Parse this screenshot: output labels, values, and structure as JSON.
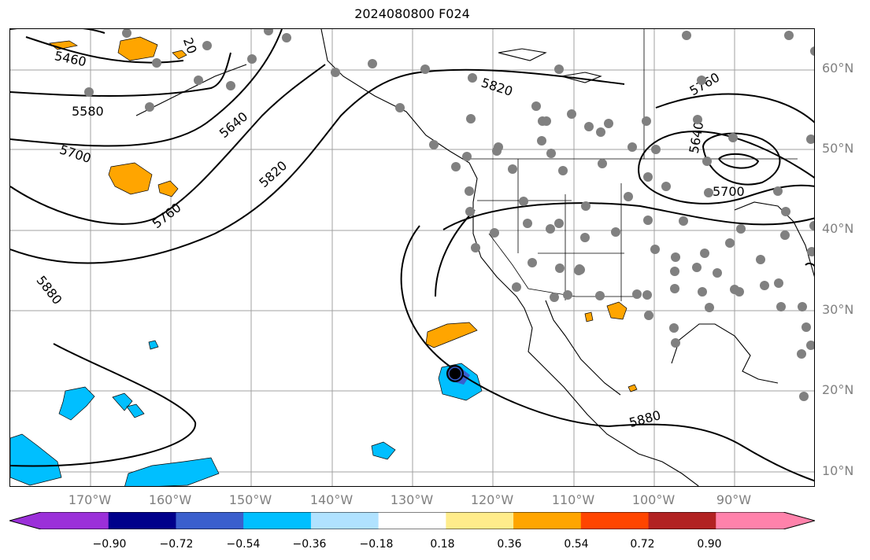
{
  "title": "2024080800 F024",
  "latitude_labels": [
    "60°N",
    "50°N",
    "40°N",
    "30°N",
    "20°N",
    "10°N"
  ],
  "longitude_labels": [
    "170°W",
    "160°W",
    "150°W",
    "140°W",
    "130°W",
    "120°W",
    "110°W",
    "100°W",
    "90°W"
  ],
  "contour_labels": [
    "5460",
    "20",
    "5580",
    "5640",
    "5700",
    "5760",
    "5820",
    "5820",
    "5880",
    "5880",
    "5760",
    "5640",
    "5700"
  ],
  "colorbar": {
    "ticks": [
      "−0.90",
      "−0.72",
      "−0.54",
      "−0.36",
      "−0.18",
      "0.18",
      "0.36",
      "0.54",
      "0.72",
      "0.90"
    ],
    "colors": [
      "#9b30d9",
      "#00008b",
      "#3a5fcd",
      "#00bfff",
      "#b0e2ff",
      "#ffffff",
      "#ffec8b",
      "#ffa500",
      "#ff4500",
      "#b22222",
      "#ff82ab"
    ]
  },
  "colors": {
    "contour": "#000000",
    "station_marker": "#808080",
    "grid": "#a0a0a0",
    "positive_shade": "#ffa500",
    "negative_shade": "#00bfff"
  }
}
